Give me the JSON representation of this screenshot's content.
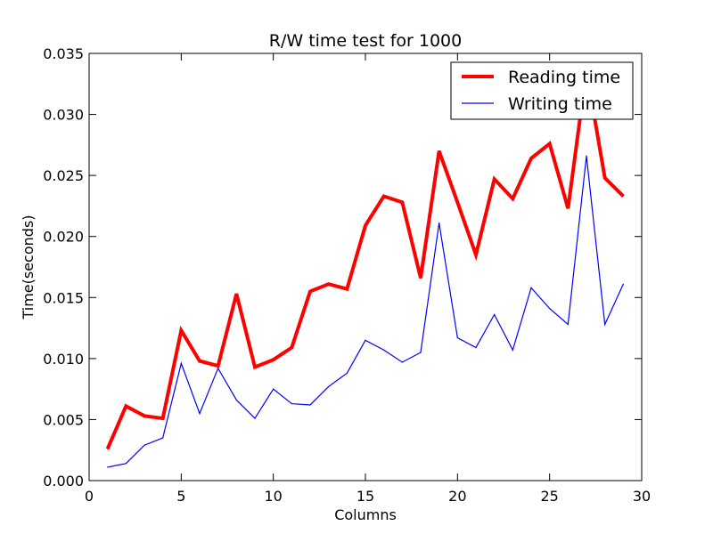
{
  "chart_data": {
    "type": "line",
    "title": "R/W time test for 1000",
    "xlabel": "Columns",
    "ylabel": "Time(seconds)",
    "xlim": [
      0,
      30
    ],
    "ylim": [
      0,
      0.035
    ],
    "x_ticks": [
      0,
      5,
      10,
      15,
      20,
      25,
      30
    ],
    "x_tick_labels": [
      "0",
      "5",
      "10",
      "15",
      "20",
      "25",
      "30"
    ],
    "y_ticks": [
      0,
      0.005,
      0.01,
      0.015,
      0.02,
      0.025,
      0.03,
      0.035
    ],
    "y_tick_labels": [
      "0.000",
      "0.005",
      "0.010",
      "0.015",
      "0.020",
      "0.025",
      "0.030",
      "0.035"
    ],
    "grid": false,
    "legend_position": "top-right",
    "x": [
      1,
      2,
      3,
      4,
      5,
      6,
      7,
      8,
      9,
      10,
      11,
      12,
      13,
      14,
      15,
      16,
      17,
      18,
      19,
      20,
      21,
      22,
      23,
      24,
      25,
      26,
      27,
      28,
      29
    ],
    "series": [
      {
        "name": "Reading time",
        "color": "#ff0000",
        "values": [
          0.0026,
          0.0061,
          0.0053,
          0.0051,
          0.0123,
          0.0098,
          0.0094,
          0.0153,
          0.0093,
          0.0099,
          0.0109,
          0.0155,
          0.0161,
          0.0157,
          0.0209,
          0.0233,
          0.0228,
          0.0166,
          0.027,
          0.0228,
          0.0185,
          0.0247,
          0.0231,
          0.0264,
          0.0276,
          0.0223,
          0.0336,
          0.0248,
          0.0233
        ]
      },
      {
        "name": "Writing time",
        "color": "#0000ff",
        "values": [
          0.0011,
          0.0014,
          0.0029,
          0.0035,
          0.0096,
          0.0055,
          0.0092,
          0.0066,
          0.0051,
          0.0075,
          0.0063,
          0.0062,
          0.0077,
          0.0088,
          0.0115,
          0.0107,
          0.0097,
          0.0105,
          0.0211,
          0.0117,
          0.0109,
          0.0136,
          0.0107,
          0.0158,
          0.0141,
          0.0128,
          0.0266,
          0.0128,
          0.0161
        ]
      }
    ]
  }
}
